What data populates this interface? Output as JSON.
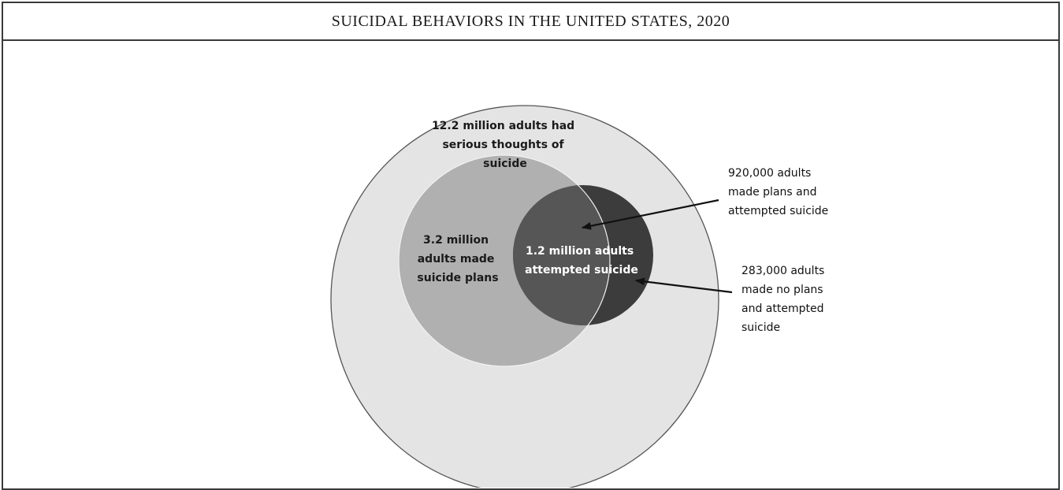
{
  "title": "SUICIDAL BEHAVIORS IN THE UNITED STATES, 2020",
  "colors": {
    "outer_fill": "#e4e4e4",
    "plans_fill": "#b0b0b0",
    "attempt_fill": "#565656",
    "attempt_no_plan_fill": "#3c3c3c",
    "circle_stroke": "#555555",
    "arrow": "#111111"
  },
  "diagram": {
    "outer": {
      "name": "serious thoughts of suicide",
      "value_millions": 12.2,
      "lines": [
        "12.2 million adults had",
        "serious thoughts of",
        "suicide"
      ]
    },
    "plans": {
      "name": "made suicide plans",
      "value_millions": 3.2,
      "lines": [
        "3.2 million",
        "adults made",
        "suicide plans"
      ]
    },
    "attempted": {
      "name": "attempted suicide",
      "value_millions": 1.2,
      "lines": [
        "1.2 million adults",
        "attempted suicide"
      ]
    },
    "callouts": {
      "plans_and_attempt": {
        "value": 920000,
        "lines": [
          "920,000 adults",
          "made plans and",
          "attempted suicide"
        ]
      },
      "no_plans_and_attempt": {
        "value": 283000,
        "lines": [
          "283,000 adults",
          "made no plans",
          "and attempted",
          "suicide"
        ]
      }
    }
  }
}
